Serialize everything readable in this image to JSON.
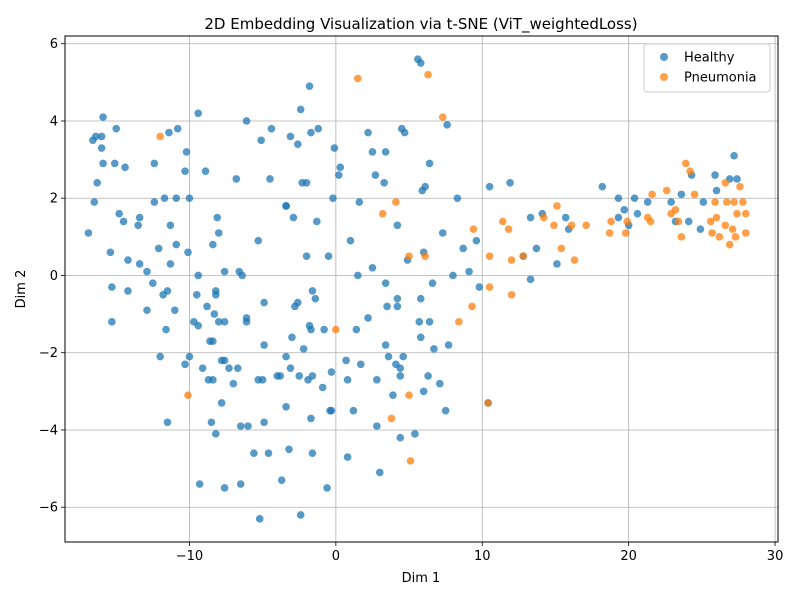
{
  "chart_data": {
    "type": "scatter",
    "title": "2D Embedding Visualization via t-SNE (ViT_weightedLoss)",
    "xlabel": "Dim 1",
    "ylabel": "Dim 2",
    "xlim": [
      -18.5,
      30.2
    ],
    "ylim": [
      -6.9,
      6.2
    ],
    "xticks": [
      -10,
      0,
      10,
      20,
      30
    ],
    "yticks": [
      -6,
      -4,
      -2,
      0,
      2,
      4,
      6
    ],
    "grid": true,
    "legend_position": "top-right",
    "series": [
      {
        "name": "Healthy",
        "color": "#1f77b4",
        "points": [
          [
            -16.9,
            1.1
          ],
          [
            -16.6,
            3.5
          ],
          [
            -16.5,
            1.9
          ],
          [
            -16.4,
            3.6
          ],
          [
            -16.3,
            2.4
          ],
          [
            -16.0,
            3.6
          ],
          [
            -16.0,
            3.3
          ],
          [
            -15.9,
            4.1
          ],
          [
            -15.9,
            2.9
          ],
          [
            -15.4,
            0.6
          ],
          [
            -15.3,
            -1.2
          ],
          [
            -15.3,
            -0.3
          ],
          [
            -15.1,
            2.9
          ],
          [
            -15.0,
            3.8
          ],
          [
            -14.8,
            1.6
          ],
          [
            -14.5,
            1.4
          ],
          [
            -14.4,
            2.8
          ],
          [
            -14.2,
            0.4
          ],
          [
            -14.2,
            -0.4
          ],
          [
            -13.5,
            1.3
          ],
          [
            -13.4,
            1.5
          ],
          [
            -13.4,
            0.3
          ],
          [
            -12.9,
            -0.9
          ],
          [
            -12.9,
            0.1
          ],
          [
            -12.5,
            -0.2
          ],
          [
            -12.4,
            2.9
          ],
          [
            -12.4,
            1.9
          ],
          [
            -12.1,
            0.7
          ],
          [
            -12.0,
            -2.1
          ],
          [
            -11.8,
            -0.5
          ],
          [
            -11.7,
            2.0
          ],
          [
            -11.6,
            -1.4
          ],
          [
            -11.5,
            -3.8
          ],
          [
            -11.5,
            -0.4
          ],
          [
            -11.4,
            3.7
          ],
          [
            -11.3,
            1.3
          ],
          [
            -11.3,
            0.3
          ],
          [
            -11.0,
            -0.9
          ],
          [
            -10.9,
            2.0
          ],
          [
            -10.9,
            0.8
          ],
          [
            -10.8,
            3.8
          ],
          [
            -10.3,
            2.7
          ],
          [
            -10.3,
            -2.3
          ],
          [
            -10.2,
            3.2
          ],
          [
            -10.1,
            0.6
          ],
          [
            -10.0,
            2.0
          ],
          [
            -10.0,
            -2.1
          ],
          [
            -9.7,
            -1.2
          ],
          [
            -9.5,
            -0.5
          ],
          [
            -9.4,
            4.2
          ],
          [
            -9.4,
            0.0
          ],
          [
            -9.4,
            -1.3
          ],
          [
            -9.3,
            -5.4
          ],
          [
            -9.1,
            -2.4
          ],
          [
            -8.9,
            2.7
          ],
          [
            -8.8,
            -0.8
          ],
          [
            -8.7,
            -2.7
          ],
          [
            -8.6,
            -1.7
          ],
          [
            -8.5,
            -3.8
          ],
          [
            -8.4,
            0.8
          ],
          [
            -8.4,
            -1.7
          ],
          [
            -8.4,
            -2.7
          ],
          [
            -8.3,
            -1.0
          ],
          [
            -8.2,
            -0.4
          ],
          [
            -8.2,
            -0.5
          ],
          [
            -8.2,
            -4.1
          ],
          [
            -8.1,
            1.5
          ],
          [
            -8.0,
            1.1
          ],
          [
            -8.0,
            -1.2
          ],
          [
            -7.8,
            -3.3
          ],
          [
            -7.8,
            -2.2
          ],
          [
            -7.6,
            0.1
          ],
          [
            -7.6,
            -1.2
          ],
          [
            -7.6,
            -5.5
          ],
          [
            -7.6,
            -2.2
          ],
          [
            -7.3,
            -2.4
          ],
          [
            -7.0,
            -2.8
          ],
          [
            -6.8,
            2.5
          ],
          [
            -6.7,
            -2.4
          ],
          [
            -6.6,
            0.1
          ],
          [
            -6.5,
            -3.9
          ],
          [
            -6.5,
            -5.4
          ],
          [
            -6.4,
            0.0
          ],
          [
            -6.1,
            4.0
          ],
          [
            -6.1,
            -1.1
          ],
          [
            -6.1,
            -1.2
          ],
          [
            -6.0,
            -3.9
          ],
          [
            -5.6,
            -4.6
          ],
          [
            -5.3,
            -2.7
          ],
          [
            -5.3,
            0.9
          ],
          [
            -5.2,
            -6.3
          ],
          [
            -5.1,
            3.5
          ],
          [
            -5.0,
            -2.7
          ],
          [
            -4.9,
            -3.8
          ],
          [
            -4.9,
            -1.8
          ],
          [
            -4.9,
            -0.7
          ],
          [
            -4.6,
            -4.6
          ],
          [
            -4.5,
            2.5
          ],
          [
            -4.4,
            3.8
          ],
          [
            -4.0,
            -2.6
          ],
          [
            -3.8,
            -2.6
          ],
          [
            -3.7,
            -5.3
          ],
          [
            -3.4,
            1.8
          ],
          [
            -3.4,
            1.8
          ],
          [
            -3.4,
            -2.1
          ],
          [
            -3.4,
            -3.4
          ],
          [
            -3.2,
            -4.5
          ],
          [
            -3.1,
            -2.4
          ],
          [
            -3.1,
            3.6
          ],
          [
            -3.0,
            -1.6
          ],
          [
            -2.9,
            1.5
          ],
          [
            -2.8,
            -0.8
          ],
          [
            -2.6,
            3.4
          ],
          [
            -2.6,
            -0.7
          ],
          [
            -2.5,
            -2.6
          ],
          [
            -2.4,
            4.3
          ],
          [
            -2.4,
            -6.2
          ],
          [
            -2.3,
            2.4
          ],
          [
            -2.2,
            -1.9
          ],
          [
            -2.0,
            2.4
          ],
          [
            -2.0,
            0.5
          ],
          [
            -1.9,
            -2.7
          ],
          [
            -1.8,
            4.9
          ],
          [
            -1.8,
            -1.3
          ],
          [
            -1.7,
            3.7
          ],
          [
            -1.7,
            -1.4
          ],
          [
            -1.7,
            -3.7
          ],
          [
            -1.6,
            -0.4
          ],
          [
            -1.6,
            -4.6
          ],
          [
            -1.6,
            -2.6
          ],
          [
            -1.4,
            -0.6
          ],
          [
            -1.3,
            1.4
          ],
          [
            -1.2,
            3.8
          ],
          [
            -0.9,
            -2.9
          ],
          [
            -0.8,
            -1.4
          ],
          [
            -0.6,
            -5.5
          ],
          [
            -0.5,
            0.5
          ],
          [
            -0.4,
            -3.5
          ],
          [
            -0.3,
            -3.5
          ],
          [
            -0.3,
            -2.5
          ],
          [
            -0.2,
            2.0
          ],
          [
            -0.1,
            3.3
          ],
          [
            0.2,
            2.6
          ],
          [
            0.3,
            2.8
          ],
          [
            0.7,
            -2.2
          ],
          [
            0.8,
            -2.7
          ],
          [
            0.8,
            -4.7
          ],
          [
            1.0,
            0.9
          ],
          [
            1.2,
            -3.5
          ],
          [
            1.4,
            -1.4
          ],
          [
            1.5,
            0.0
          ],
          [
            1.6,
            1.9
          ],
          [
            1.7,
            -2.3
          ],
          [
            2.2,
            3.7
          ],
          [
            2.2,
            -1.1
          ],
          [
            2.5,
            3.2
          ],
          [
            2.5,
            0.2
          ],
          [
            2.7,
            2.6
          ],
          [
            2.8,
            -2.7
          ],
          [
            2.8,
            -3.9
          ],
          [
            3.0,
            -5.1
          ],
          [
            3.3,
            2.4
          ],
          [
            3.4,
            -0.2
          ],
          [
            3.4,
            -1.8
          ],
          [
            3.4,
            3.2
          ],
          [
            3.5,
            -0.8
          ],
          [
            3.6,
            -2.1
          ],
          [
            3.9,
            -3.1
          ],
          [
            4.1,
            -2.3
          ],
          [
            4.2,
            -0.6
          ],
          [
            4.2,
            -0.8
          ],
          [
            4.2,
            1.3
          ],
          [
            4.4,
            -2.4
          ],
          [
            4.4,
            -2.6
          ],
          [
            4.4,
            -4.2
          ],
          [
            4.5,
            3.8
          ],
          [
            4.6,
            -2.1
          ],
          [
            4.7,
            3.7
          ],
          [
            4.9,
            0.4
          ],
          [
            5.4,
            -4.1
          ],
          [
            5.6,
            5.6
          ],
          [
            5.7,
            -1.2
          ],
          [
            5.8,
            5.5
          ],
          [
            5.8,
            -0.6
          ],
          [
            5.8,
            -1.6
          ],
          [
            5.9,
            2.2
          ],
          [
            6.0,
            -3.0
          ],
          [
            6.0,
            0.6
          ],
          [
            6.1,
            2.3
          ],
          [
            6.3,
            -2.6
          ],
          [
            6.4,
            2.9
          ],
          [
            6.4,
            -1.2
          ],
          [
            6.6,
            -0.2
          ],
          [
            6.7,
            -1.9
          ],
          [
            7.1,
            -2.8
          ],
          [
            7.3,
            1.1
          ],
          [
            7.5,
            -3.5
          ],
          [
            7.6,
            3.9
          ],
          [
            7.7,
            -1.8
          ],
          [
            8.0,
            0.0
          ],
          [
            8.3,
            2.0
          ],
          [
            8.7,
            0.7
          ],
          [
            9.1,
            0.1
          ],
          [
            9.6,
            0.9
          ],
          [
            9.8,
            -0.3
          ],
          [
            10.4,
            -3.3
          ],
          [
            10.5,
            2.3
          ],
          [
            11.9,
            2.4
          ],
          [
            12.8,
            0.5
          ],
          [
            13.3,
            1.5
          ],
          [
            13.3,
            -0.1
          ],
          [
            13.7,
            0.7
          ],
          [
            14.1,
            1.6
          ],
          [
            15.1,
            0.3
          ],
          [
            15.7,
            1.5
          ],
          [
            15.9,
            1.2
          ],
          [
            18.2,
            2.3
          ],
          [
            19.3,
            1.5
          ],
          [
            19.3,
            2.0
          ],
          [
            19.7,
            1.7
          ],
          [
            20.0,
            1.3
          ],
          [
            20.4,
            2.0
          ],
          [
            20.6,
            1.6
          ],
          [
            21.3,
            1.9
          ],
          [
            22.9,
            1.9
          ],
          [
            23.2,
            1.4
          ],
          [
            23.6,
            2.1
          ],
          [
            24.1,
            1.4
          ],
          [
            24.3,
            2.6
          ],
          [
            24.9,
            1.2
          ],
          [
            25.1,
            1.9
          ],
          [
            25.9,
            2.6
          ],
          [
            26.0,
            2.2
          ],
          [
            26.9,
            2.5
          ],
          [
            27.2,
            3.1
          ],
          [
            27.4,
            2.5
          ]
        ]
      },
      {
        "name": "Pneumonia",
        "color": "#ff7f0e",
        "points": [
          [
            -12.0,
            3.6
          ],
          [
            -10.1,
            -3.1
          ],
          [
            0.0,
            -1.4
          ],
          [
            1.5,
            5.1
          ],
          [
            3.2,
            1.6
          ],
          [
            3.8,
            -3.7
          ],
          [
            4.1,
            1.9
          ],
          [
            5.0,
            -3.1
          ],
          [
            5.0,
            0.5
          ],
          [
            5.1,
            -4.8
          ],
          [
            6.1,
            0.5
          ],
          [
            6.3,
            5.2
          ],
          [
            7.3,
            4.1
          ],
          [
            8.4,
            -1.2
          ],
          [
            9.3,
            -0.8
          ],
          [
            9.4,
            1.2
          ],
          [
            10.4,
            -3.3
          ],
          [
            10.5,
            0.5
          ],
          [
            10.5,
            -0.3
          ],
          [
            11.4,
            1.4
          ],
          [
            11.8,
            1.2
          ],
          [
            12.0,
            0.4
          ],
          [
            12.0,
            -0.5
          ],
          [
            12.8,
            0.5
          ],
          [
            14.2,
            1.5
          ],
          [
            14.9,
            1.3
          ],
          [
            15.1,
            1.8
          ],
          [
            15.4,
            0.7
          ],
          [
            16.1,
            1.3
          ],
          [
            16.3,
            0.4
          ],
          [
            17.1,
            1.3
          ],
          [
            18.7,
            1.1
          ],
          [
            18.8,
            1.4
          ],
          [
            19.8,
            1.1
          ],
          [
            19.9,
            1.4
          ],
          [
            21.3,
            1.5
          ],
          [
            21.5,
            1.4
          ],
          [
            21.6,
            2.1
          ],
          [
            22.6,
            2.2
          ],
          [
            22.9,
            1.6
          ],
          [
            23.2,
            1.7
          ],
          [
            23.4,
            1.4
          ],
          [
            23.6,
            1.0
          ],
          [
            23.9,
            2.9
          ],
          [
            24.2,
            2.7
          ],
          [
            24.5,
            2.1
          ],
          [
            25.6,
            1.4
          ],
          [
            25.7,
            1.1
          ],
          [
            25.9,
            1.9
          ],
          [
            26.0,
            1.5
          ],
          [
            26.2,
            1.0
          ],
          [
            26.6,
            2.4
          ],
          [
            26.6,
            1.3
          ],
          [
            26.7,
            1.9
          ],
          [
            26.9,
            0.8
          ],
          [
            27.1,
            1.2
          ],
          [
            27.2,
            1.9
          ],
          [
            27.3,
            1.0
          ],
          [
            27.4,
            1.6
          ],
          [
            27.6,
            2.3
          ],
          [
            27.8,
            1.9
          ],
          [
            28.0,
            1.1
          ],
          [
            28.0,
            1.6
          ]
        ]
      }
    ]
  }
}
